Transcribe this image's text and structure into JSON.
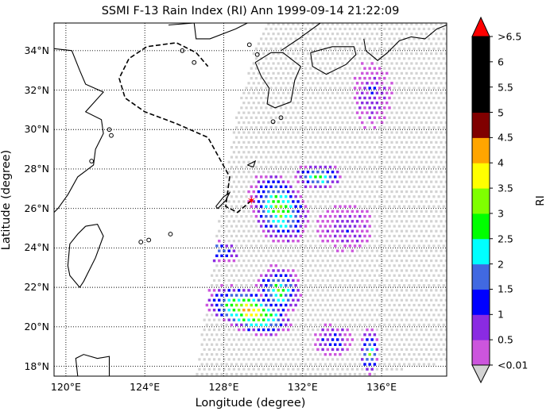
{
  "title": "SSMI F-13 Rain Index (RI) Ann 1999-09-14 21:22:09",
  "x_axis": {
    "label": "Longitude (degree)",
    "ticks": [
      {
        "value": 120,
        "label": "120°E"
      },
      {
        "value": 124,
        "label": "124°E"
      },
      {
        "value": 128,
        "label": "128°E"
      },
      {
        "value": 132,
        "label": "132°E"
      },
      {
        "value": 136,
        "label": "136°E"
      }
    ],
    "range": [
      119.4,
      139.3
    ]
  },
  "y_axis": {
    "label": "Latitude (degree)",
    "ticks": [
      {
        "value": 18,
        "label": "18°N"
      },
      {
        "value": 20,
        "label": "20°N"
      },
      {
        "value": 22,
        "label": "22°N"
      },
      {
        "value": 24,
        "label": "24°N"
      },
      {
        "value": 26,
        "label": "26°N"
      },
      {
        "value": 28,
        "label": "28°N"
      },
      {
        "value": 30,
        "label": "30°N"
      },
      {
        "value": 32,
        "label": "32°N"
      },
      {
        "value": 34,
        "label": "34°N"
      }
    ],
    "range": [
      17.5,
      35.4
    ]
  },
  "colorbar": {
    "title": "RI",
    "tick_labels": [
      ">6.5",
      "6",
      "5.5",
      "5",
      "4.5",
      "4",
      "3.5",
      "3",
      "2.5",
      "2",
      "1.5",
      "1",
      "0.5",
      "<0.01"
    ],
    "colors": [
      "#CC55DD",
      "#8A2BE2",
      "#0000FF",
      "#4169E1",
      "#00FFFF",
      "#00FF00",
      "#7FFF00",
      "#FFFF00",
      "#FFA500",
      "#800000",
      "#000000",
      "#000000",
      "#000000"
    ],
    "over_color": "#FF0000",
    "under_color": "#D3D3D3"
  },
  "storm_center": {
    "lon": 129.4,
    "lat": 26.4,
    "color": "#FF0000"
  },
  "grid": true
}
